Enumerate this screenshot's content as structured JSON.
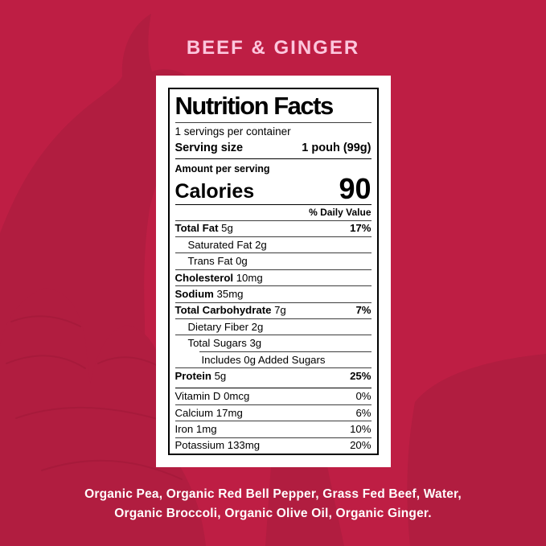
{
  "colors": {
    "background": "#BE1E44",
    "silhouette": "#B11D40",
    "silhouette_line": "#A51A3B",
    "title_pink": "#FCC6DD",
    "label_background": "#FFFFFF",
    "label_text": "#000000"
  },
  "header": {
    "title": "BEEF & GINGER"
  },
  "label": {
    "title": "Nutrition Facts",
    "servings_per_container": "1 servings per container",
    "serving_size_label": "Serving size",
    "serving_size_value": "1 pouh (99g)",
    "amount_per_serving": "Amount per serving",
    "calories_label": "Calories",
    "calories_value": "90",
    "daily_value_header": "% Daily Value",
    "nutrient_rows": [
      {
        "label": "Total Fat",
        "value": "5g",
        "percent": "17%",
        "bold": true,
        "indent": 0,
        "divider_indent": false
      },
      {
        "label": "Saturated Fat",
        "value": "2g",
        "percent": "",
        "bold": false,
        "indent": 1,
        "divider_indent": false
      },
      {
        "label": "Trans Fat",
        "value": "0g",
        "percent": "",
        "bold": false,
        "indent": 1,
        "divider_indent": false
      },
      {
        "label": "Cholesterol",
        "value": "10mg",
        "percent": "",
        "bold": true,
        "indent": 0,
        "divider_indent": false
      },
      {
        "label": "Sodium",
        "value": "35mg",
        "percent": "",
        "bold": true,
        "indent": 0,
        "divider_indent": false
      },
      {
        "label": "Total Carbohydrate",
        "value": "7g",
        "percent": "7%",
        "bold": true,
        "indent": 0,
        "divider_indent": false
      },
      {
        "label": "Dietary Fiber",
        "value": "2g",
        "percent": "",
        "bold": false,
        "indent": 1,
        "divider_indent": false
      },
      {
        "label": "Total Sugars",
        "value": "3g",
        "percent": "",
        "bold": false,
        "indent": 1,
        "divider_indent": false
      },
      {
        "label": "Includes 0g Added Sugars",
        "value": "",
        "percent": "",
        "bold": false,
        "indent": 2,
        "divider_indent": true
      },
      {
        "label": "Protein",
        "value": "5g",
        "percent": "25%",
        "bold": true,
        "indent": 0,
        "divider_indent": false
      }
    ],
    "vitamin_rows": [
      {
        "label": "Vitamin D",
        "value": "0mcg",
        "percent": "0%"
      },
      {
        "label": "Calcium",
        "value": "17mg",
        "percent": "6%"
      },
      {
        "label": "Iron",
        "value": "1mg",
        "percent": "10%"
      },
      {
        "label": "Potassium",
        "value": "133mg",
        "percent": "20%"
      }
    ]
  },
  "footer": {
    "ingredients_lines": [
      "Organic Pea, Organic Red Bell Pepper, Grass Fed Beef, Water,",
      "Organic Broccoli, Organic Olive Oil, Organic Ginger."
    ]
  }
}
